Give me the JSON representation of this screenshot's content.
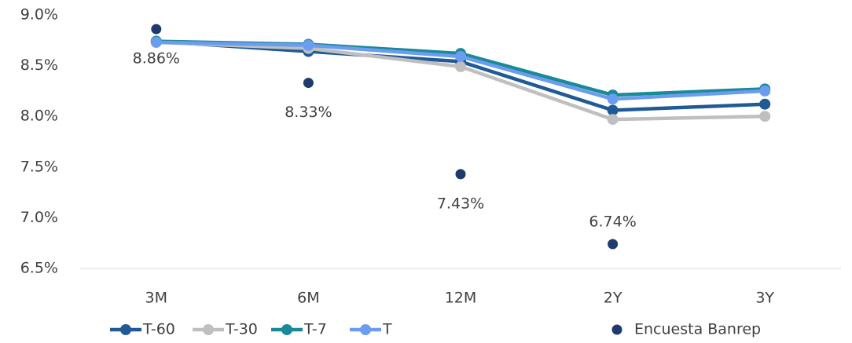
{
  "chart_data": {
    "type": "line",
    "categories": [
      "3M",
      "6M",
      "12M",
      "2Y",
      "3Y"
    ],
    "series": [
      {
        "name": "T-60",
        "color": "#1f5a96",
        "values": [
          8.74,
          8.64,
          8.54,
          8.06,
          8.12
        ]
      },
      {
        "name": "T-30",
        "color": "#bfbfbf",
        "values": [
          8.73,
          8.67,
          8.49,
          7.97,
          8.0
        ]
      },
      {
        "name": "T-7",
        "color": "#1a8a9a",
        "values": [
          8.74,
          8.71,
          8.62,
          8.21,
          8.27
        ]
      },
      {
        "name": "T",
        "color": "#6b9cf0",
        "values": [
          8.73,
          8.7,
          8.59,
          8.17,
          8.25
        ]
      },
      {
        "name": "Encuesta Banrep",
        "color": "#1f3a6e",
        "mode": "markers",
        "values": [
          8.86,
          8.33,
          7.43,
          6.74,
          null
        ],
        "value_labels": [
          "8.86%",
          "8.33%",
          "7.43%",
          "6.74%",
          null
        ]
      }
    ],
    "ylim": [
      6.5,
      9.0
    ],
    "yticks": [
      {
        "value": 6.5,
        "label": "6.5%"
      },
      {
        "value": 7.0,
        "label": "7.0%"
      },
      {
        "value": 7.5,
        "label": "7.5%"
      },
      {
        "value": 8.0,
        "label": "8.0%"
      },
      {
        "value": 8.5,
        "label": "8.5%"
      },
      {
        "value": 9.0,
        "label": "9.0%"
      }
    ],
    "grid": false,
    "legend": "bottom"
  }
}
